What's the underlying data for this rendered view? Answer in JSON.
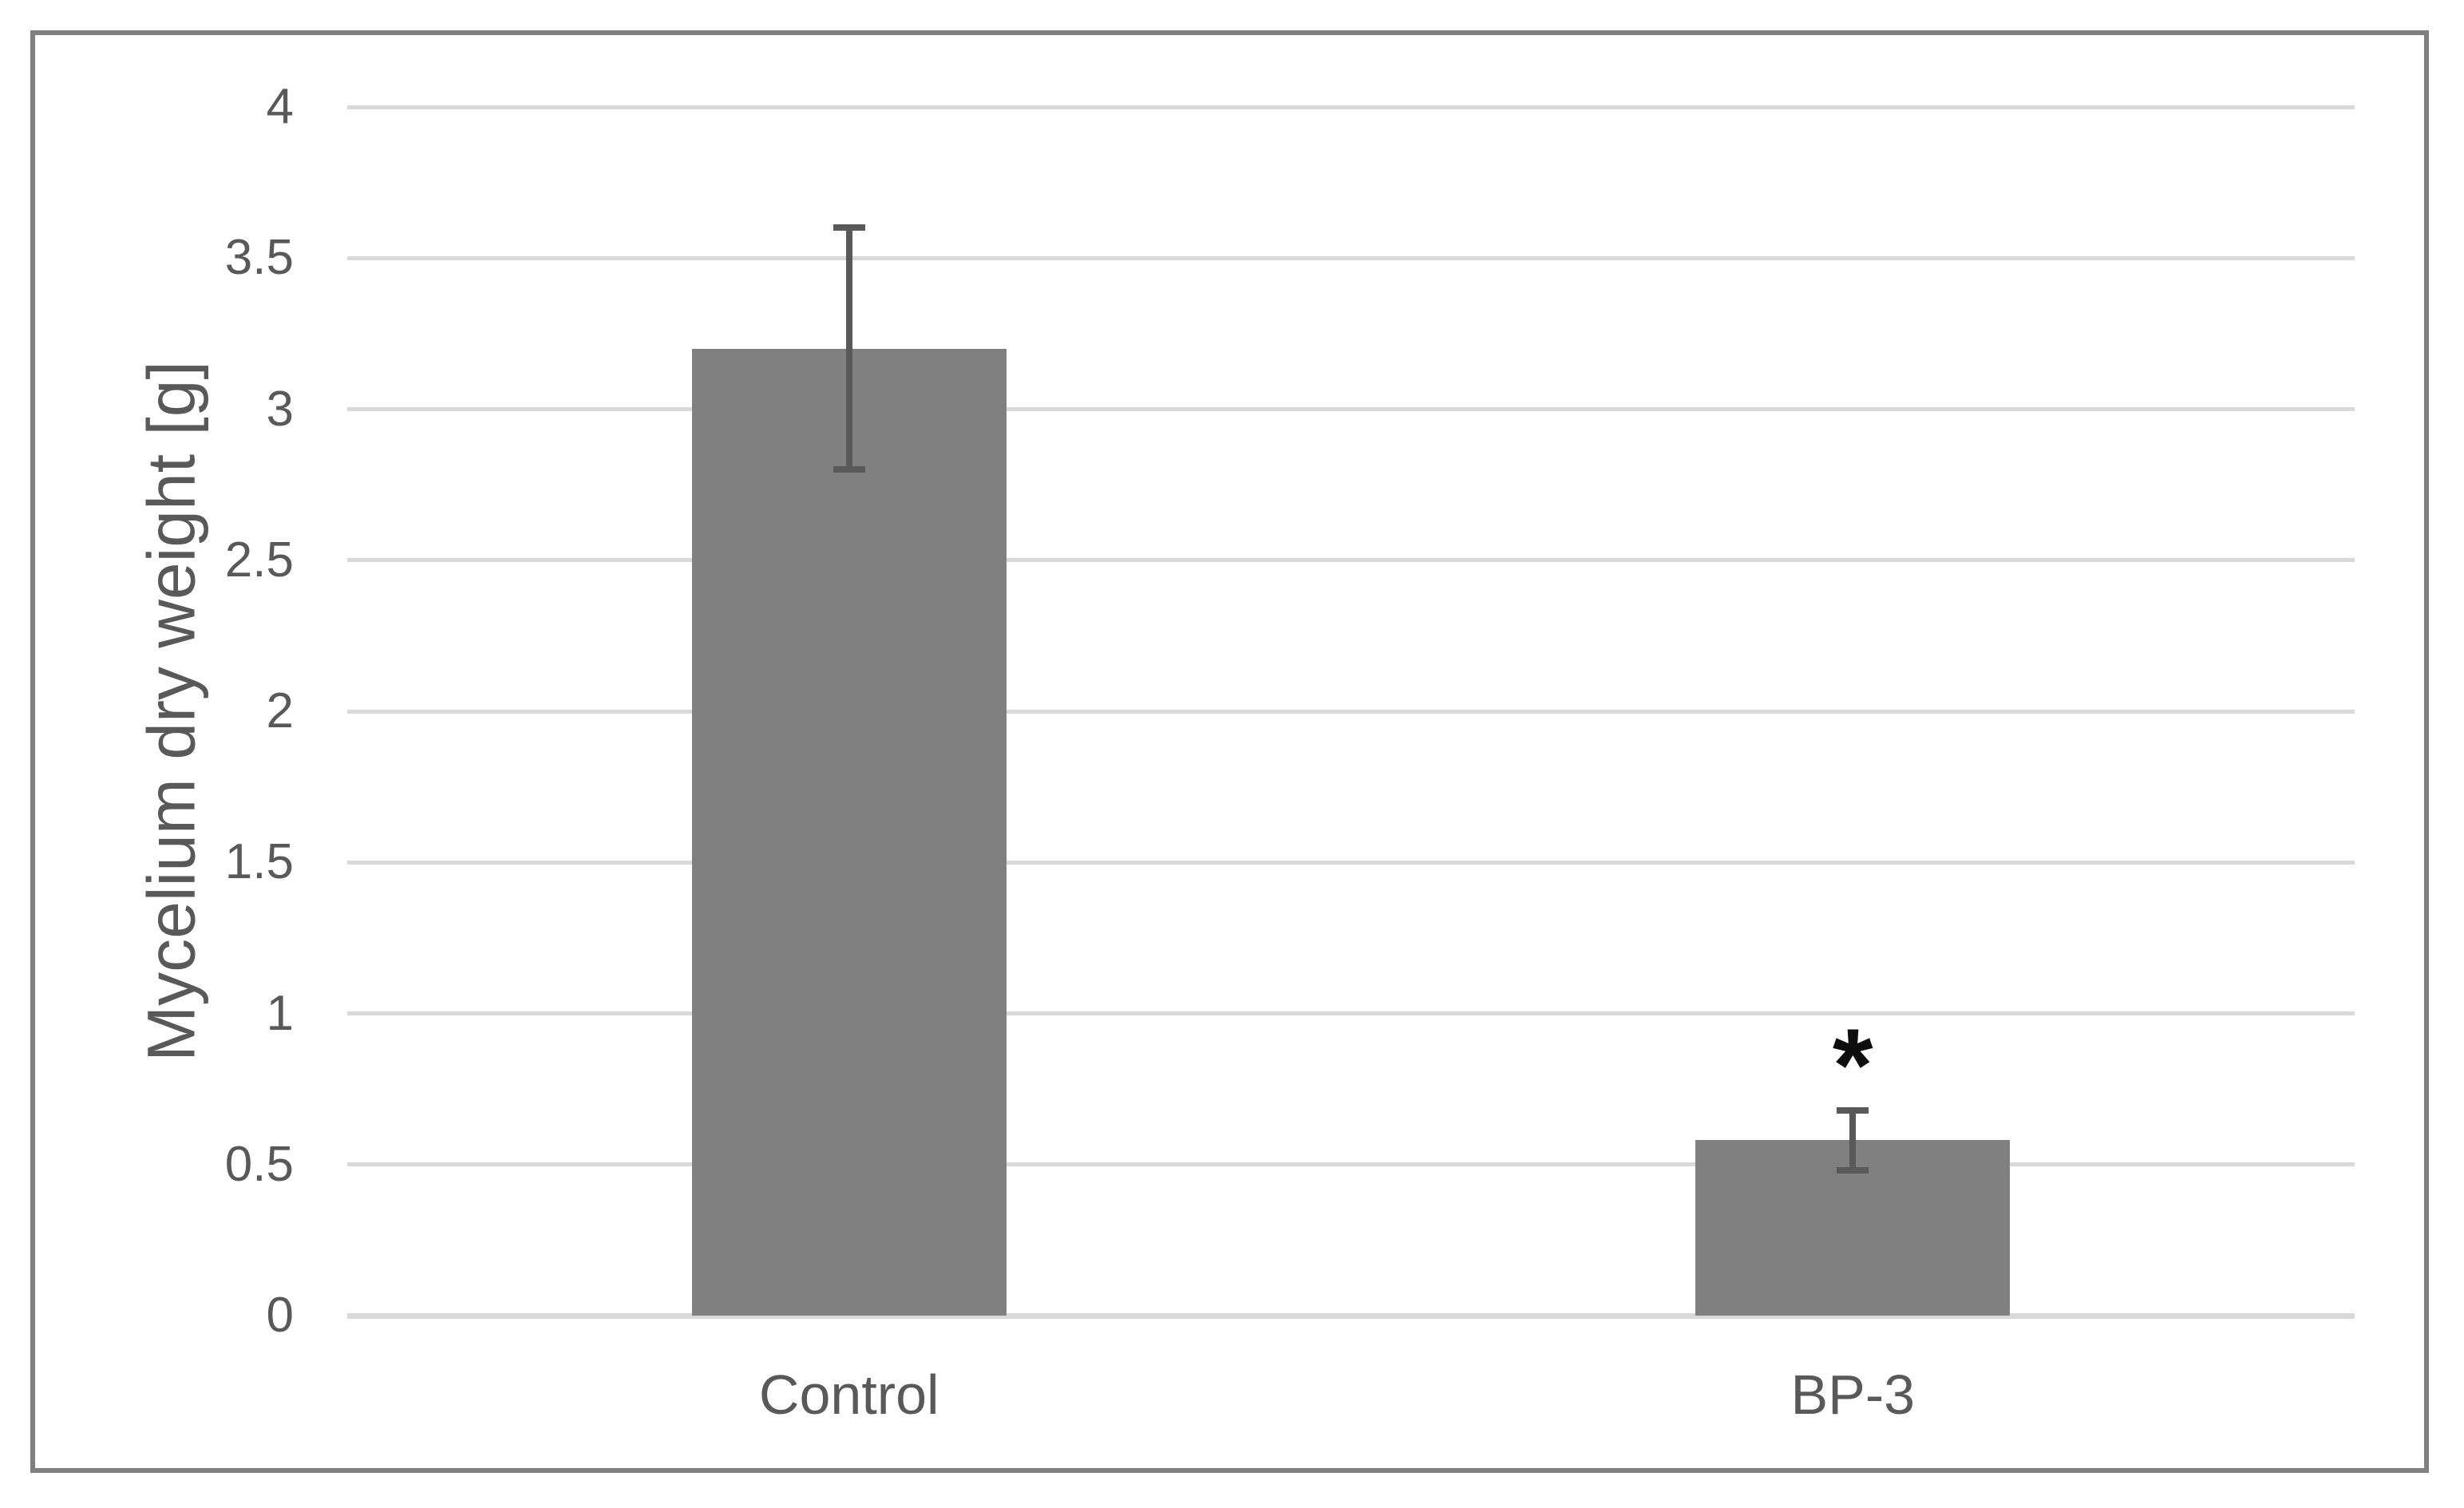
{
  "figure": {
    "background": "#ffffff",
    "border_color": "#808080"
  },
  "chart_data": {
    "type": "bar",
    "title": "",
    "categories": [
      "Control",
      "BP-3"
    ],
    "values": [
      3.2,
      0.58
    ],
    "error_plus": [
      0.4,
      0.1
    ],
    "error_minus": [
      0.4,
      0.1
    ],
    "annotations": [
      {
        "category_index": 1,
        "text": "*"
      }
    ],
    "xlabel": "",
    "ylabel": "Mycelium dry weight [g]",
    "ylim": [
      0,
      4
    ],
    "yticks": [
      0,
      0.5,
      1,
      1.5,
      2,
      2.5,
      3,
      3.5,
      4
    ],
    "ytick_labels": [
      "0",
      "0.5",
      "1",
      "1.5",
      "2",
      "2.5",
      "3",
      "3.5",
      "4"
    ],
    "grid": "horizontal",
    "legend_position": "none",
    "colors": {
      "bar_fill": "#808080",
      "error_bar": "#595959",
      "gridline": "#d9d9d9",
      "text": "#595959",
      "annotation": "#0d0d0d",
      "border": "#808080"
    }
  }
}
